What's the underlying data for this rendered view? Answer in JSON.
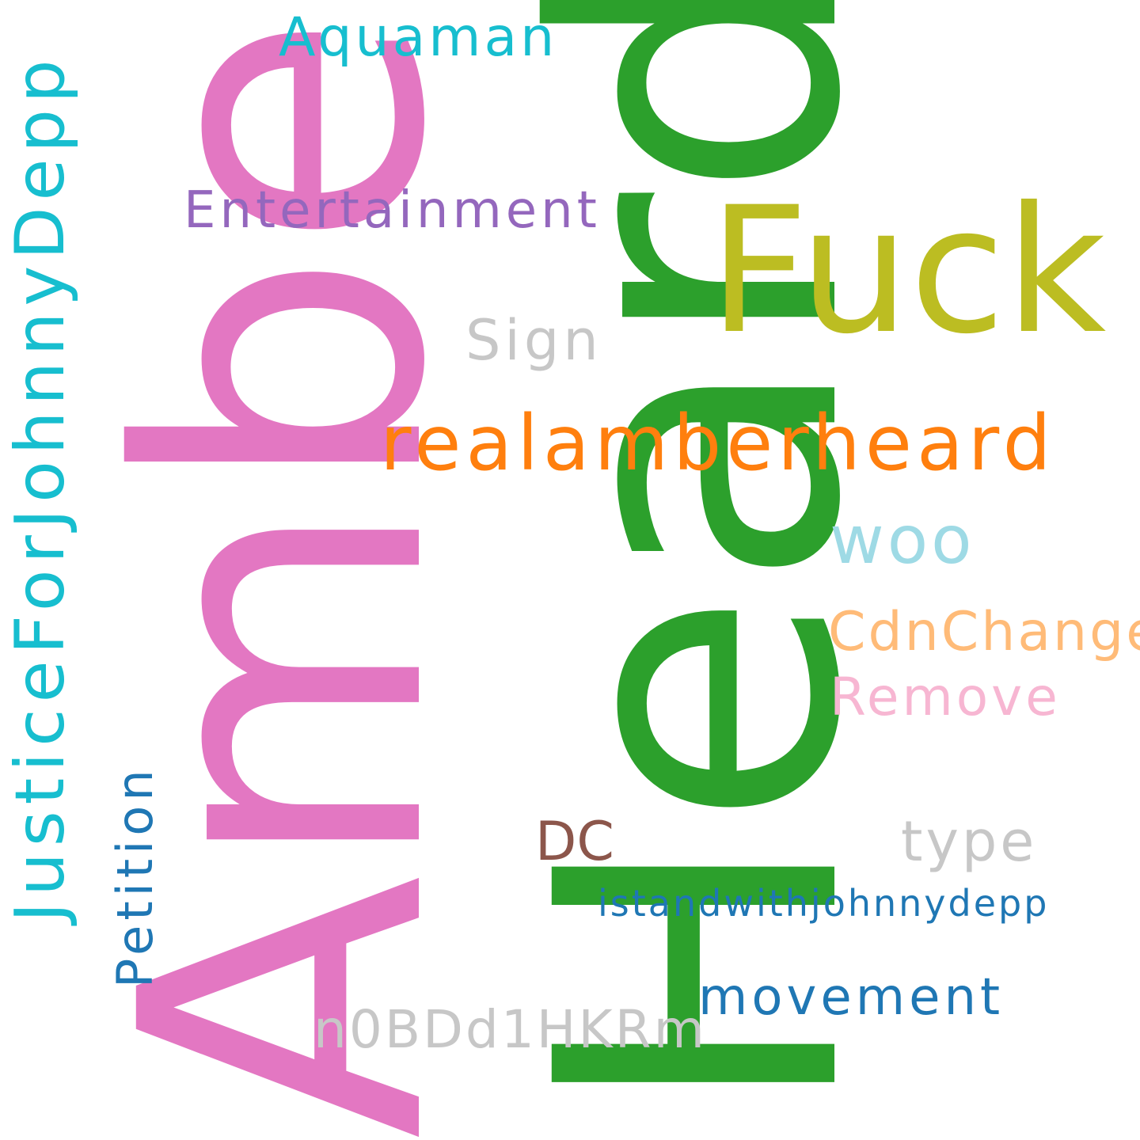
{
  "words": {
    "amber": {
      "text": "Amber",
      "color": "#e377c2"
    },
    "heard": {
      "text": "Heard",
      "color": "#2ca02c"
    },
    "fuck": {
      "text": "Fuck",
      "color": "#bcbd22"
    },
    "real": {
      "text": "realamberheard",
      "color": "#ff7f0e"
    },
    "justice": {
      "text": "JusticeForJohnnyDepp",
      "color": "#17becf"
    },
    "aquaman": {
      "text": "Aquaman",
      "color": "#17becf"
    },
    "entertain": {
      "text": "Entertainment",
      "color": "#9467bd"
    },
    "sign": {
      "text": "Sign",
      "color": "#c7c7c7"
    },
    "woo": {
      "text": "woo",
      "color": "#9edae5"
    },
    "cdn": {
      "text": "CdnChange",
      "color": "#ffbb78"
    },
    "remove": {
      "text": "Remove",
      "color": "#f7b6d2"
    },
    "petition": {
      "text": "Petition",
      "color": "#1f77b4"
    },
    "dc": {
      "text": "DC",
      "color": "#8c564b"
    },
    "type": {
      "text": "type",
      "color": "#c7c7c7"
    },
    "istand": {
      "text": "istandwithjohnnydepp",
      "color": "#1f77b4"
    },
    "movement": {
      "text": "movement",
      "color": "#1f77b4"
    },
    "n0bd": {
      "text": "n0BDd1HKRm",
      "color": "#c7c7c7"
    }
  }
}
